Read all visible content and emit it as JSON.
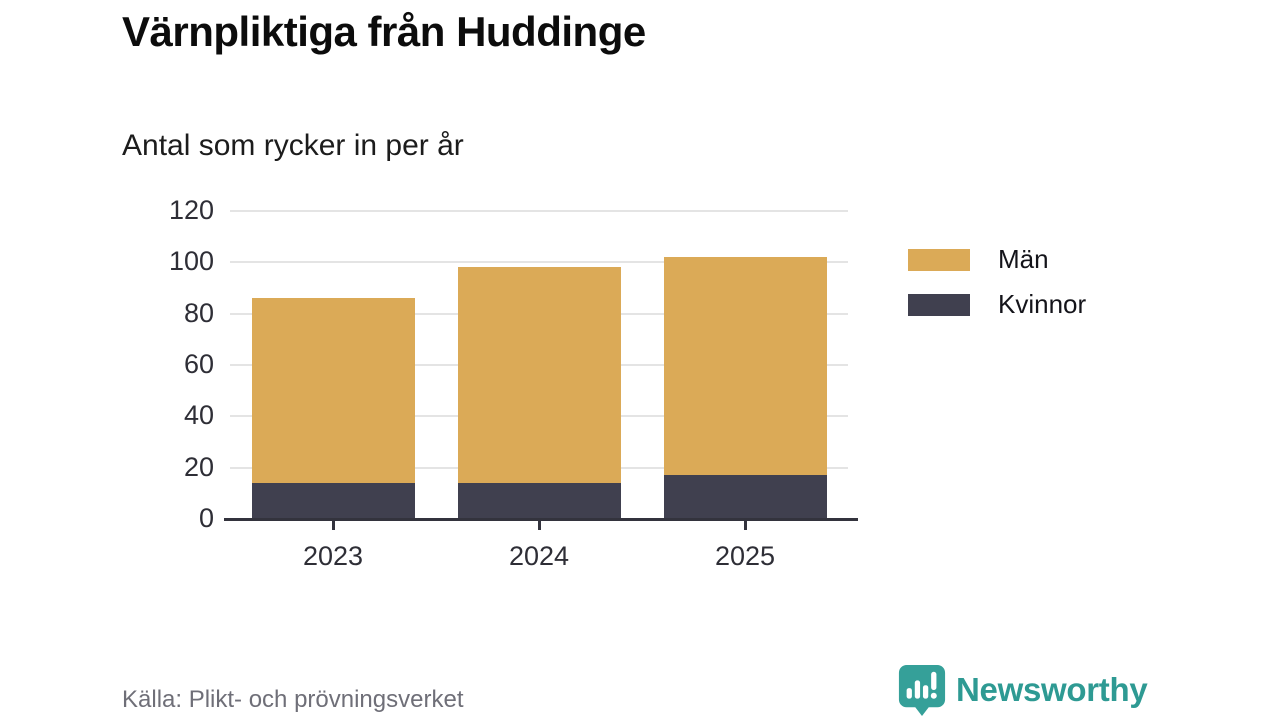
{
  "title": "Värnpliktiga från Huddinge",
  "subtitle": "Antal som rycker in per år",
  "source": "Källa: Plikt- och prövningsverket",
  "brand": {
    "name": "Newsworthy",
    "teal": "#35a099",
    "text_color": "#2e9a93"
  },
  "chart_data": {
    "type": "bar",
    "stacked": true,
    "title": "Värnpliktiga från Huddinge",
    "subtitle": "Antal som rycker in per år",
    "categories": [
      "2023",
      "2024",
      "2025"
    ],
    "series": [
      {
        "name": "Kvinnor",
        "color": "#40404f",
        "values": [
          14,
          14,
          17
        ]
      },
      {
        "name": "Män",
        "color": "#dbaa57",
        "values": [
          72,
          84,
          85
        ]
      }
    ],
    "totals": [
      86,
      98,
      102
    ],
    "legend": [
      {
        "label": "Män",
        "color": "#dbaa57"
      },
      {
        "label": "Kvinnor",
        "color": "#40404f"
      }
    ],
    "legend_position": "right",
    "ylim": [
      0,
      120
    ],
    "yticks": [
      0,
      20,
      40,
      60,
      80,
      100,
      120
    ],
    "grid": true,
    "gridline_color": "#e4e4e4",
    "axis_color": "#33333d"
  }
}
